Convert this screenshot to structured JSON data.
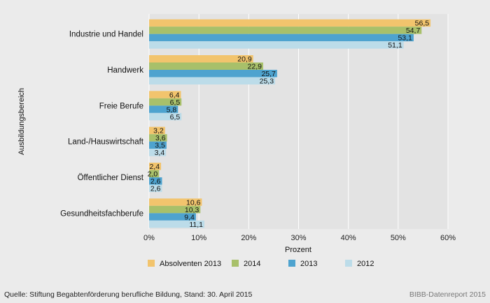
{
  "chart_data": {
    "type": "bar",
    "orientation": "horizontal",
    "categories": [
      "Industrie und Handel",
      "Handwerk",
      "Freie Berufe",
      "Land-/Hauswirtschaft",
      "Öffentlicher Dienst",
      "Gesundheitsfachberufe"
    ],
    "series": [
      {
        "name": "Absolventen 2013",
        "values": [
          56.5,
          20.9,
          6.4,
          3.2,
          2.4,
          10.6
        ],
        "labels": [
          "56,5",
          "20,9",
          "6,4",
          "3,2",
          "2,4",
          "10,6"
        ],
        "color": "#f2c46d"
      },
      {
        "name": "2014",
        "values": [
          54.7,
          22.9,
          6.5,
          3.6,
          2.0,
          10.3
        ],
        "labels": [
          "54,7",
          "22,9",
          "6,5",
          "3,6",
          "2,0",
          "10,3"
        ],
        "color": "#a8c06a"
      },
      {
        "name": "2013",
        "values": [
          53.1,
          25.7,
          5.8,
          3.5,
          2.6,
          9.4
        ],
        "labels": [
          "53,1",
          "25,7",
          "5,8",
          "3,5",
          "2,6",
          "9,4"
        ],
        "color": "#4ea3cf"
      },
      {
        "name": "2012",
        "values": [
          51.1,
          25.3,
          6.5,
          3.4,
          2.6,
          11.1
        ],
        "labels": [
          "51,1",
          "25,3",
          "6,5",
          "3,4",
          "2,6",
          "11,1"
        ],
        "color": "#bcdce9"
      }
    ],
    "xlim": [
      0,
      60
    ],
    "xticks": [
      0,
      10,
      20,
      30,
      40,
      50,
      60
    ],
    "xtick_labels": [
      "0%",
      "10%",
      "20%",
      "30%",
      "40%",
      "50%",
      "60%"
    ],
    "xlabel": "Prozent",
    "ylabel": "Ausbildungsbereich",
    "grid": "vertical",
    "plot_background": "#e3e3e3",
    "legend_position": "bottom"
  },
  "footer": {
    "source": "Quelle: Stiftung Begabtenförderung berufliche Bildung, Stand: 30. April 2015",
    "credit": "BIBB-Datenreport 2015"
  }
}
